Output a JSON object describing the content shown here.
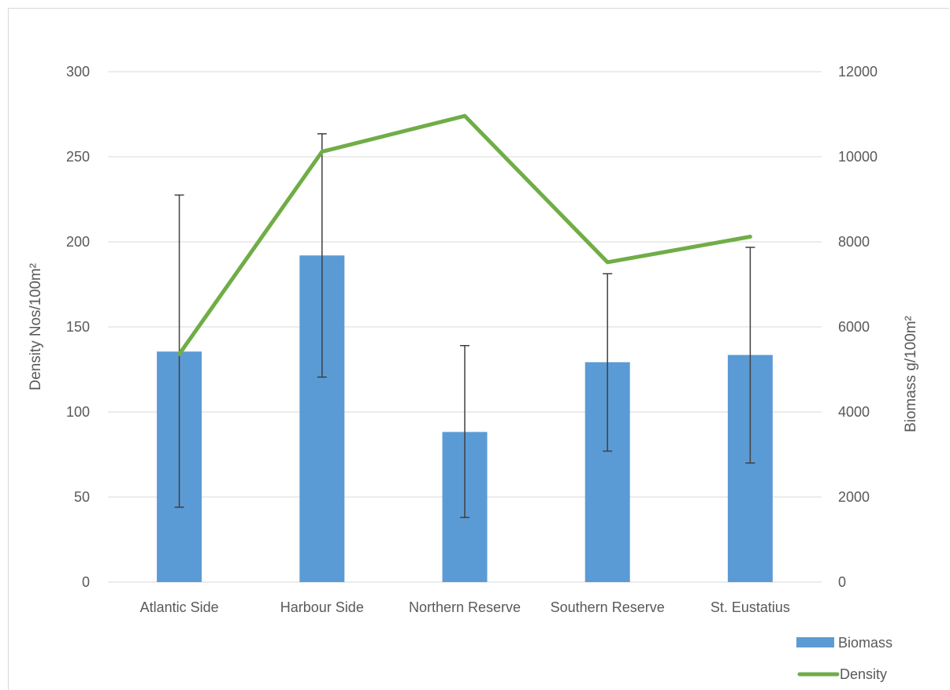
{
  "chart_data": {
    "type": "bar",
    "categories": [
      "Atlantic Side",
      "Harbour Side",
      "Northern Reserve",
      "Southern Reserve",
      "St. Eustatius"
    ],
    "series": [
      {
        "name": "Biomass",
        "type": "bar",
        "axis": "right",
        "values": [
          5420,
          7680,
          3530,
          5170,
          5340
        ],
        "error_low": [
          1760,
          4820,
          1520,
          3080,
          2800
        ],
        "error_high": [
          9100,
          10540,
          5560,
          7250,
          7870
        ],
        "color": "#5b9bd5"
      },
      {
        "name": "Density",
        "type": "line",
        "axis": "left",
        "values": [
          134,
          253,
          274,
          188,
          203
        ],
        "color": "#70ad47"
      }
    ],
    "ylabel": "Density Nos/100m²",
    "y2label": "Biomass g/100m²",
    "ylim": [
      0,
      300
    ],
    "y2lim": [
      0,
      12000
    ],
    "yticks": [
      "0",
      "50",
      "100",
      "150",
      "200",
      "250",
      "300"
    ],
    "y2ticks": [
      "0",
      "2000",
      "4000",
      "6000",
      "8000",
      "10000",
      "12000"
    ],
    "grid": true,
    "legend_position": "bottom-right",
    "error_bar_color": "#404040",
    "grid_color": "#d9d9d9"
  }
}
